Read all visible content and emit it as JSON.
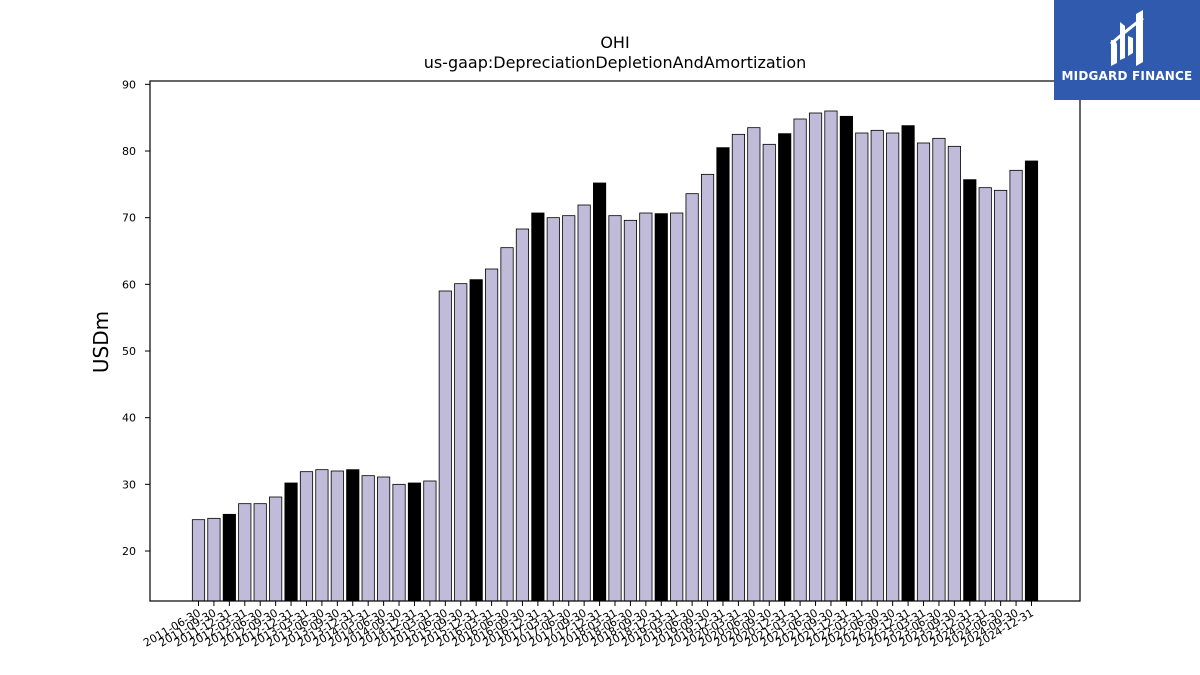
{
  "brand": {
    "name": "MIDGARD FINANCE",
    "color": "#2f5aad"
  },
  "colors": {
    "bar_default": "#bfbbd9",
    "bar_highlight": "#000000",
    "outline": "#000000"
  },
  "chart_data": {
    "type": "bar",
    "title": "OHI",
    "subtitle": "us-gaap:DepreciationDepletionAndAmortization",
    "xlabel": "",
    "ylabel": "USDm",
    "ylim": [
      12.5,
      90.5
    ],
    "yticks": [
      20,
      30,
      40,
      50,
      60,
      70,
      80,
      90
    ],
    "grid": false,
    "categories": [
      "2011-06-30",
      "2011-09-30",
      "2011-12-31",
      "2012-03-31",
      "2012-06-30",
      "2012-09-30",
      "2012-12-31",
      "2013-03-31",
      "2013-06-30",
      "2013-09-30",
      "2013-12-31",
      "2014-03-31",
      "2014-06-30",
      "2014-09-30",
      "2014-12-31",
      "2015-03-31",
      "2015-06-30",
      "2015-09-30",
      "2015-12-31",
      "2016-03-31",
      "2016-06-30",
      "2016-09-30",
      "2016-12-31",
      "2017-03-31",
      "2017-06-30",
      "2017-09-30",
      "2017-12-31",
      "2018-03-31",
      "2018-06-30",
      "2018-09-30",
      "2018-12-31",
      "2019-03-31",
      "2019-06-30",
      "2019-09-30",
      "2019-12-31",
      "2020-03-31",
      "2020-06-30",
      "2020-09-30",
      "2020-12-31",
      "2021-03-31",
      "2021-06-30",
      "2021-09-30",
      "2021-12-31",
      "2022-03-31",
      "2022-06-30",
      "2022-09-30",
      "2022-12-31",
      "2023-03-31",
      "2023-06-30",
      "2023-09-30",
      "2023-12-31",
      "2024-03-31",
      "2024-06-30",
      "2024-09-30",
      "2024-12-31"
    ],
    "values": [
      24.7,
      24.9,
      25.5,
      27.1,
      27.1,
      28.1,
      30.2,
      31.9,
      32.2,
      32.0,
      32.2,
      31.3,
      31.1,
      30.0,
      30.2,
      30.5,
      59.0,
      60.1,
      60.7,
      62.3,
      65.5,
      68.3,
      70.7,
      70.0,
      70.3,
      71.9,
      75.2,
      70.3,
      69.6,
      70.7,
      70.6,
      70.7,
      73.6,
      76.5,
      80.5,
      82.5,
      83.5,
      81.0,
      82.6,
      84.8,
      85.7,
      86.0,
      85.2,
      82.7,
      83.1,
      82.7,
      83.8,
      81.2,
      81.9,
      80.7,
      75.7,
      74.5,
      74.1,
      77.1,
      78.5
    ],
    "highlight": [
      false,
      false,
      true,
      false,
      false,
      false,
      true,
      false,
      false,
      false,
      true,
      false,
      false,
      false,
      true,
      false,
      false,
      false,
      true,
      false,
      false,
      false,
      true,
      false,
      false,
      false,
      true,
      false,
      false,
      false,
      true,
      false,
      false,
      false,
      true,
      false,
      false,
      false,
      true,
      false,
      false,
      false,
      true,
      false,
      false,
      false,
      true,
      false,
      false,
      false,
      true,
      false,
      false,
      false,
      true
    ]
  }
}
